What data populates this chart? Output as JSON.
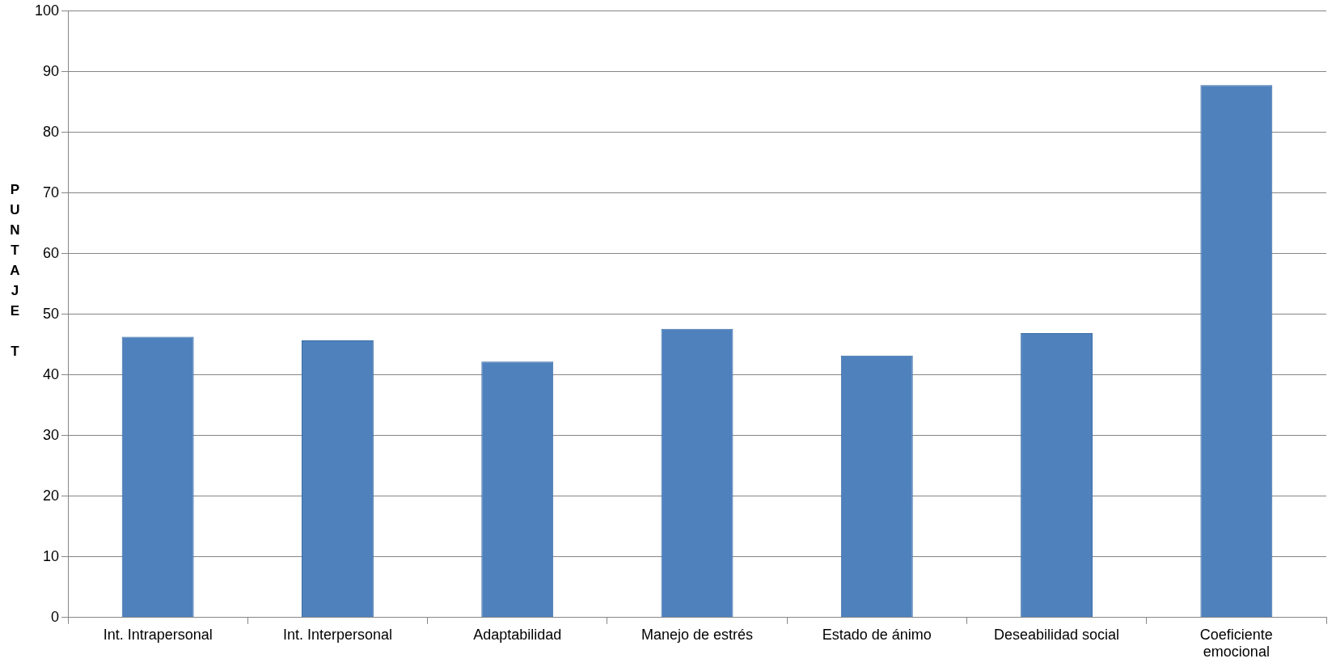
{
  "chart_data": {
    "type": "bar",
    "ylabel": "PUNTAJE T",
    "categories": [
      "Int. Intrapersonal",
      "Int. Interpersonal",
      "Adaptabilidad",
      "Manejo de estrés",
      "Estado de ánimo",
      "Deseabilidad social",
      "Coeficiente emocional"
    ],
    "values": [
      46.3,
      45.7,
      42.2,
      47.6,
      43.2,
      46.9,
      87.8
    ],
    "color": "#4f81bd",
    "ylim": [
      0,
      100
    ],
    "yticks": [
      0,
      10,
      20,
      30,
      40,
      50,
      60,
      70,
      80,
      90,
      100
    ],
    "grid": "y",
    "legend": false
  }
}
